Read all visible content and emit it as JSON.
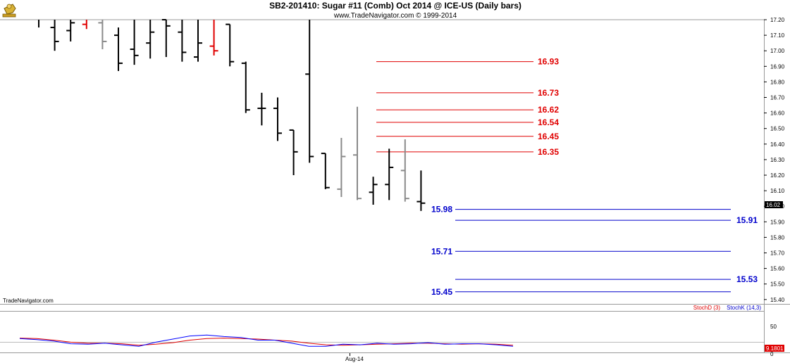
{
  "header": {
    "title": "SB2-201410:  Sugar #11 (Comb) Oct 2014 @ ICE-US  (Daily bars)",
    "copyright": "www.TradeNavigator.com © 1999-2014"
  },
  "watermark": "TradeNavigator.com",
  "last_price_label": "16.02",
  "x_axis_label": "Aug-14",
  "lower_panel": {
    "legend_d": "StochD (3)",
    "legend_k": "StochK (14,3)",
    "tick_50": "50",
    "tick_0": "0",
    "value_label": "9.1801"
  },
  "colors": {
    "resistance": "#e00000",
    "support": "#0000cc",
    "bar_black": "#000000",
    "bar_gray": "#8a8a8a",
    "bar_red": "#e00000",
    "bar_green": "#00c000",
    "stoch_d": "#e00000",
    "stoch_k": "#0000ff"
  },
  "chart_data": {
    "type": "ohlc",
    "title": "SB2-201410:  Sugar #11 (Comb) Oct 2014 @ ICE-US  (Daily bars)",
    "ylim": [
      15.4,
      17.25
    ],
    "y_ticks": [
      "17.20",
      "17.10",
      "17.00",
      "16.90",
      "16.80",
      "16.70",
      "16.60",
      "16.50",
      "16.40",
      "16.30",
      "16.20",
      "16.10",
      "16.00",
      "15.90",
      "15.80",
      "15.70",
      "15.60",
      "15.50",
      "15.40"
    ],
    "bars": [
      {
        "o": 17.27,
        "h": 17.32,
        "l": 17.15,
        "c": 17.25,
        "color": "black"
      },
      {
        "o": 17.15,
        "h": 17.25,
        "l": 17.0,
        "c": 17.06,
        "color": "black"
      },
      {
        "o": 17.13,
        "h": 17.22,
        "l": 17.06,
        "c": 17.18,
        "color": "black"
      },
      {
        "o": 17.17,
        "h": 17.22,
        "l": 17.14,
        "c": 17.21,
        "color": "red"
      },
      {
        "o": 17.18,
        "h": 17.22,
        "l": 17.01,
        "c": 17.06,
        "color": "gray"
      },
      {
        "o": 17.1,
        "h": 17.15,
        "l": 16.87,
        "c": 16.92,
        "color": "black"
      },
      {
        "o": 17.01,
        "h": 17.2,
        "l": 16.91,
        "c": 16.97,
        "color": "black"
      },
      {
        "o": 17.05,
        "h": 17.22,
        "l": 16.95,
        "c": 17.12,
        "color": "black"
      },
      {
        "o": 17.2,
        "h": 17.23,
        "l": 16.96,
        "c": 17.16,
        "color": "black"
      },
      {
        "o": 17.12,
        "h": 17.21,
        "l": 16.93,
        "c": 16.99,
        "color": "black"
      },
      {
        "o": 16.96,
        "h": 17.21,
        "l": 16.93,
        "c": 17.05,
        "color": "black"
      },
      {
        "o": 17.03,
        "h": 17.22,
        "l": 16.97,
        "c": 17.0,
        "color": "red"
      },
      {
        "o": 17.17,
        "h": 17.17,
        "l": 16.9,
        "c": 16.93,
        "color": "black"
      },
      {
        "o": 16.92,
        "h": 16.93,
        "l": 16.6,
        "c": 16.62,
        "color": "black"
      },
      {
        "o": 16.63,
        "h": 16.73,
        "l": 16.52,
        "c": 16.63,
        "color": "black"
      },
      {
        "o": 16.63,
        "h": 16.7,
        "l": 16.42,
        "c": 16.47,
        "color": "black"
      },
      {
        "o": 16.49,
        "h": 16.49,
        "l": 16.2,
        "c": 16.35,
        "color": "black"
      },
      {
        "o": 16.85,
        "h": 17.22,
        "l": 16.28,
        "c": 16.32,
        "color": "black"
      },
      {
        "o": 16.34,
        "h": 16.34,
        "l": 16.11,
        "c": 16.12,
        "color": "black"
      },
      {
        "o": 16.11,
        "h": 16.44,
        "l": 16.06,
        "c": 16.32,
        "color": "gray"
      },
      {
        "o": 16.33,
        "h": 16.64,
        "l": 16.04,
        "c": 16.05,
        "color": "gray"
      },
      {
        "o": 16.09,
        "h": 16.19,
        "l": 16.01,
        "c": 16.14,
        "color": "black"
      },
      {
        "o": 16.14,
        "h": 16.37,
        "l": 16.04,
        "c": 16.25,
        "color": "black"
      },
      {
        "o": 16.23,
        "h": 16.43,
        "l": 16.03,
        "c": 16.05,
        "color": "gray"
      },
      {
        "o": 16.03,
        "h": 16.23,
        "l": 15.97,
        "c": 16.02,
        "color": "black"
      }
    ],
    "resistance_levels": [
      16.93,
      16.73,
      16.62,
      16.54,
      16.45,
      16.35
    ],
    "support_levels": [
      15.98,
      15.91,
      15.71,
      15.53,
      15.45
    ],
    "stochastic": {
      "ylim": [
        0,
        100
      ],
      "stoch_d": [
        28,
        27,
        24,
        20,
        18,
        18,
        17,
        14,
        16,
        19,
        24,
        27,
        28,
        27,
        26,
        24,
        22,
        18,
        15,
        14,
        15,
        16,
        17,
        18,
        18,
        17,
        16,
        17,
        16,
        14
      ],
      "stoch_k": [
        27,
        25,
        22,
        17,
        16,
        18,
        15,
        12,
        20,
        26,
        32,
        34,
        31,
        29,
        24,
        24,
        18,
        12,
        12,
        16,
        15,
        18,
        16,
        17,
        19,
        16,
        17,
        17,
        15,
        12
      ]
    }
  }
}
